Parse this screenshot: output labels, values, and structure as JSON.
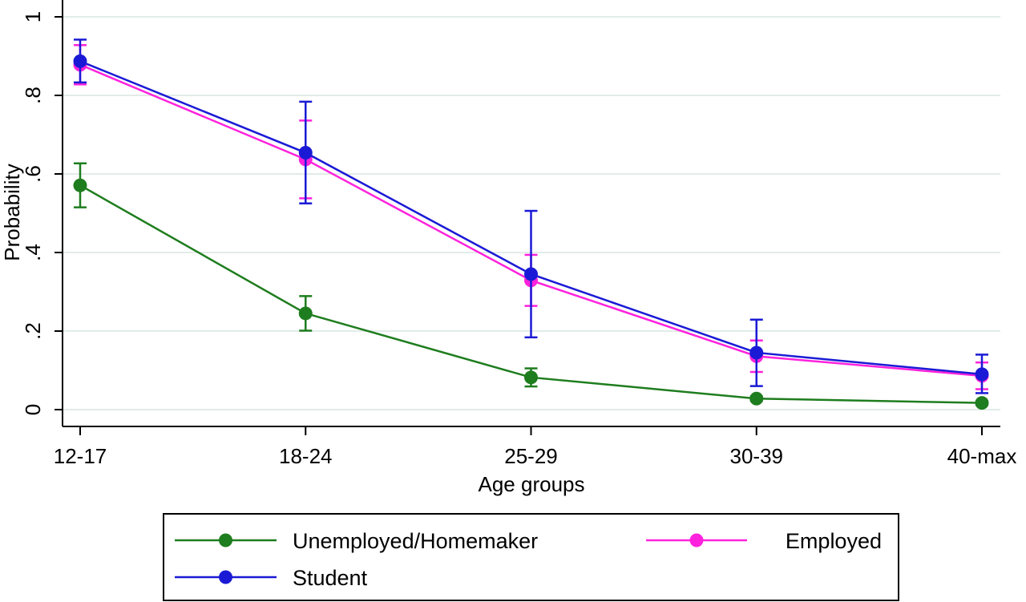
{
  "chart_data": {
    "type": "line",
    "title": "",
    "xlabel": "Age groups",
    "ylabel": "Probability",
    "categories": [
      "12-17",
      "18-24",
      "25-29",
      "30-39",
      "40-max"
    ],
    "ylim": [
      0,
      1
    ],
    "yticks": [
      {
        "value": 0,
        "label": "0"
      },
      {
        "value": 0.2,
        "label": ".2"
      },
      {
        "value": 0.4,
        "label": ".4"
      },
      {
        "value": 0.6,
        "label": ".6"
      },
      {
        "value": 0.8,
        "label": ".8"
      },
      {
        "value": 1,
        "label": "1"
      }
    ],
    "grid": true,
    "legend_position": "bottom",
    "series": [
      {
        "name": "Unemployed/Homemaker",
        "color": "#1e7d1e",
        "values": [
          0.571,
          0.245,
          0.082,
          0.028,
          0.017
        ],
        "ci_low": [
          0.515,
          0.201,
          0.059,
          0.022,
          0.012
        ],
        "ci_high": [
          0.627,
          0.289,
          0.105,
          0.034,
          0.022
        ]
      },
      {
        "name": "Employed",
        "color": "#ff22dd",
        "values": [
          0.878,
          0.637,
          0.329,
          0.136,
          0.086
        ],
        "ci_low": [
          0.828,
          0.538,
          0.264,
          0.096,
          0.052
        ],
        "ci_high": [
          0.928,
          0.736,
          0.394,
          0.176,
          0.12
        ]
      },
      {
        "name": "Student",
        "color": "#1a1ad6",
        "values": [
          0.887,
          0.654,
          0.345,
          0.145,
          0.09
        ],
        "ci_low": [
          0.833,
          0.525,
          0.184,
          0.06,
          0.042
        ],
        "ci_high": [
          0.942,
          0.784,
          0.506,
          0.229,
          0.14
        ]
      }
    ],
    "legend_order": [
      "Unemployed/Homemaker",
      "Employed",
      "Student"
    ]
  }
}
